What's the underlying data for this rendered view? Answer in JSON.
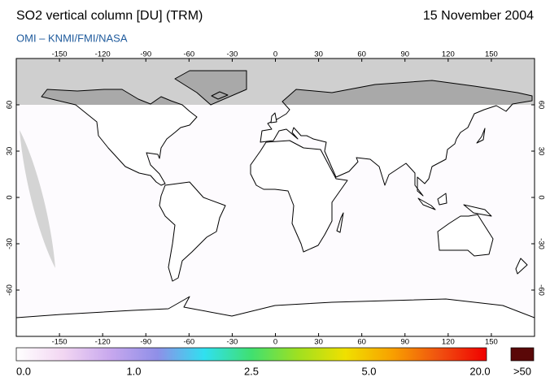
{
  "header": {
    "title": "SO2 vertical column [DU] (TRM)",
    "date": "15 November 2004",
    "subtitle": "OMI  –  KNMI/FMI/NASA"
  },
  "map": {
    "lon_lim": [
      -180,
      180
    ],
    "lat_lim": [
      -90,
      90
    ],
    "lon_ticks": [
      -150,
      -120,
      -90,
      -60,
      -30,
      0,
      30,
      60,
      90,
      120,
      150
    ],
    "lat_ticks": [
      60,
      30,
      0,
      -30,
      -60
    ]
  },
  "colorbar": {
    "labels": [
      "0.0",
      "1.0",
      "2.5",
      "5.0",
      "20.0"
    ],
    "overflow_label": ">50",
    "colors": [
      "#ffffff",
      "#f2d6f2",
      "#c8a8ee",
      "#8f8fe8",
      "#30e0f0",
      "#40e070",
      "#a0e020",
      "#f0e000",
      "#f8a000",
      "#f05010",
      "#f00000"
    ],
    "overflow_color": "#5a0808"
  }
}
